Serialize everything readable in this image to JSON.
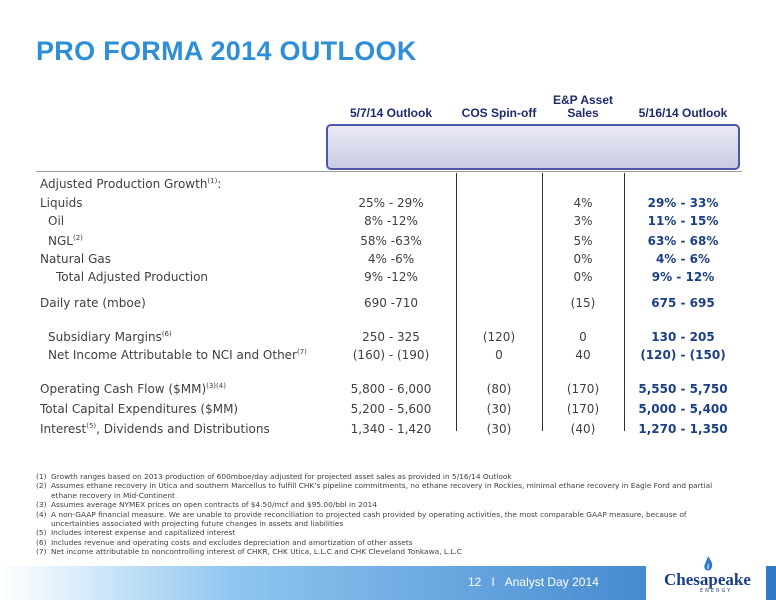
{
  "title": "PRO FORMA 2014 OUTLOOK",
  "table": {
    "headers": [
      "5/7/14 Outlook",
      "COS Spin-off",
      "E&P Asset",
      "Sales",
      "5/16/14 Outlook"
    ],
    "section_label": "Adjusted Production Growth",
    "section_sup": "(1)",
    "section_suffix": ":",
    "rows": [
      {
        "label": "Liquids",
        "sup": "",
        "c1": "25% - 29%",
        "c2": "",
        "c3": "4%",
        "c4": "29% - 33%"
      },
      {
        "label": "Oil",
        "sup": "",
        "c1": "8% -12%",
        "c2": "",
        "c3": "3%",
        "c4": "11% - 15%"
      },
      {
        "label": "NGL",
        "sup": "(2)",
        "c1": "58% -63%",
        "c2": "",
        "c3": "5%",
        "c4": "63% - 68%"
      },
      {
        "label": "Natural Gas",
        "sup": "",
        "c1": "4% -6%",
        "c2": "",
        "c3": "0%",
        "c4": "4% - 6%"
      },
      {
        "label": "Total Adjusted Production",
        "sup": "",
        "c1": "9% -12%",
        "c2": "",
        "c3": "0%",
        "c4": "9% - 12%"
      },
      {
        "label": "Daily rate (mboe)",
        "sup": "",
        "c1": "690 -710",
        "c2": "",
        "c3": "(15)",
        "c4": "675 - 695"
      },
      {
        "label": "Subsidiary Margins",
        "sup": "(6)",
        "c1": "250 - 325",
        "c2": "(120)",
        "c3": "0",
        "c4": "130 - 205"
      },
      {
        "label": "Net Income Attributable to NCI and Other",
        "sup": "(7)",
        "c1": "(160) - (190)",
        "c2": "0",
        "c3": "40",
        "c4": "(120) - (150)"
      },
      {
        "label": "Operating Cash Flow ($MM)",
        "sup": "(3)(4)",
        "c1": "5,800 - 6,000",
        "c2": "(80)",
        "c3": "(170)",
        "c4": "5,550 - 5,750"
      },
      {
        "label": "Total Capital Expenditures ($MM)",
        "sup": "",
        "c1": "5,200 - 5,600",
        "c2": "(30)",
        "c3": "(170)",
        "c4": "5,000 - 5,400"
      },
      {
        "label": "Interest",
        "sup": "(5)",
        "suffix": ", Dividends and Distributions",
        "c1": "1,340 - 1,420",
        "c2": "(30)",
        "c3": "(40)",
        "c4": "1,270 - 1,350"
      }
    ]
  },
  "footnotes": [
    {
      "num": "(1)",
      "text": "Growth ranges based on 2013 production of 600mboe/day adjusted for projected asset sales as provided in 5/16/14 Outlook"
    },
    {
      "num": "(2)",
      "text": "Assumes ethane recovery in Utica and southern Marcellus to fulfill CHK’s pipeline commitments, no ethane recovery in Rockies, minimal ethane recovery in Eagle Ford and partial ethane recovery in Mid-Continent"
    },
    {
      "num": "(3)",
      "text": "Assumes average NYMEX prices on open contracts of $4.50/mcf and $95.00/bbl in 2014"
    },
    {
      "num": "(4)",
      "text": "A non-GAAP financial measure. We are unable to provide reconciliation to projected cash provided by operating activities, the most comparable GAAP measure, because of uncertainties associated with projecting future changes in assets and liabilities"
    },
    {
      "num": "(5)",
      "text": "Includes interest expense and capitalized interest"
    },
    {
      "num": "(6)",
      "text": "Includes revenue and operating costs and excludes depreciation and amortization of other assets"
    },
    {
      "num": "(7)",
      "text": "Net income attributable to noncontrolling interest of CHKR, CHK Utica, L.L.C and CHK Cleveland Tonkawa, L.L.C"
    }
  ],
  "footer": {
    "page": "12",
    "separator": "I",
    "event": "Analyst Day 2014"
  },
  "logo": {
    "name": "Chesapeake",
    "sub": "ENERGY"
  },
  "colors": {
    "title": "#2e8fd6",
    "outlook": "#1b3f86",
    "header_border": "#4d56a8"
  }
}
